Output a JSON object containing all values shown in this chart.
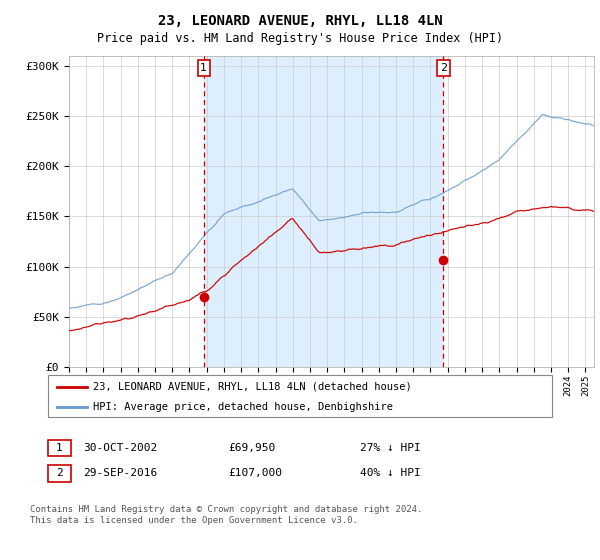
{
  "title": "23, LEONARD AVENUE, RHYL, LL18 4LN",
  "subtitle": "Price paid vs. HM Land Registry's House Price Index (HPI)",
  "ylabel_ticks": [
    "£0",
    "£50K",
    "£100K",
    "£150K",
    "£200K",
    "£250K",
    "£300K"
  ],
  "ytick_values": [
    0,
    50000,
    100000,
    150000,
    200000,
    250000,
    300000
  ],
  "ylim": [
    0,
    310000
  ],
  "xlim_start": 1995.0,
  "xlim_end": 2025.5,
  "sale1_x": 2002.83,
  "sale1_y": 69950,
  "sale2_x": 2016.75,
  "sale2_y": 107000,
  "legend_line1": "23, LEONARD AVENUE, RHYL, LL18 4LN (detached house)",
  "legend_line2": "HPI: Average price, detached house, Denbighshire",
  "footnote": "Contains HM Land Registry data © Crown copyright and database right 2024.\nThis data is licensed under the Open Government Licence v3.0.",
  "red_color": "#cc0000",
  "blue_color": "#6699cc",
  "shade_color": "#ddeeff",
  "grid_color": "#cccccc",
  "plot_bg": "#ffffff",
  "fig_bg": "#ffffff"
}
